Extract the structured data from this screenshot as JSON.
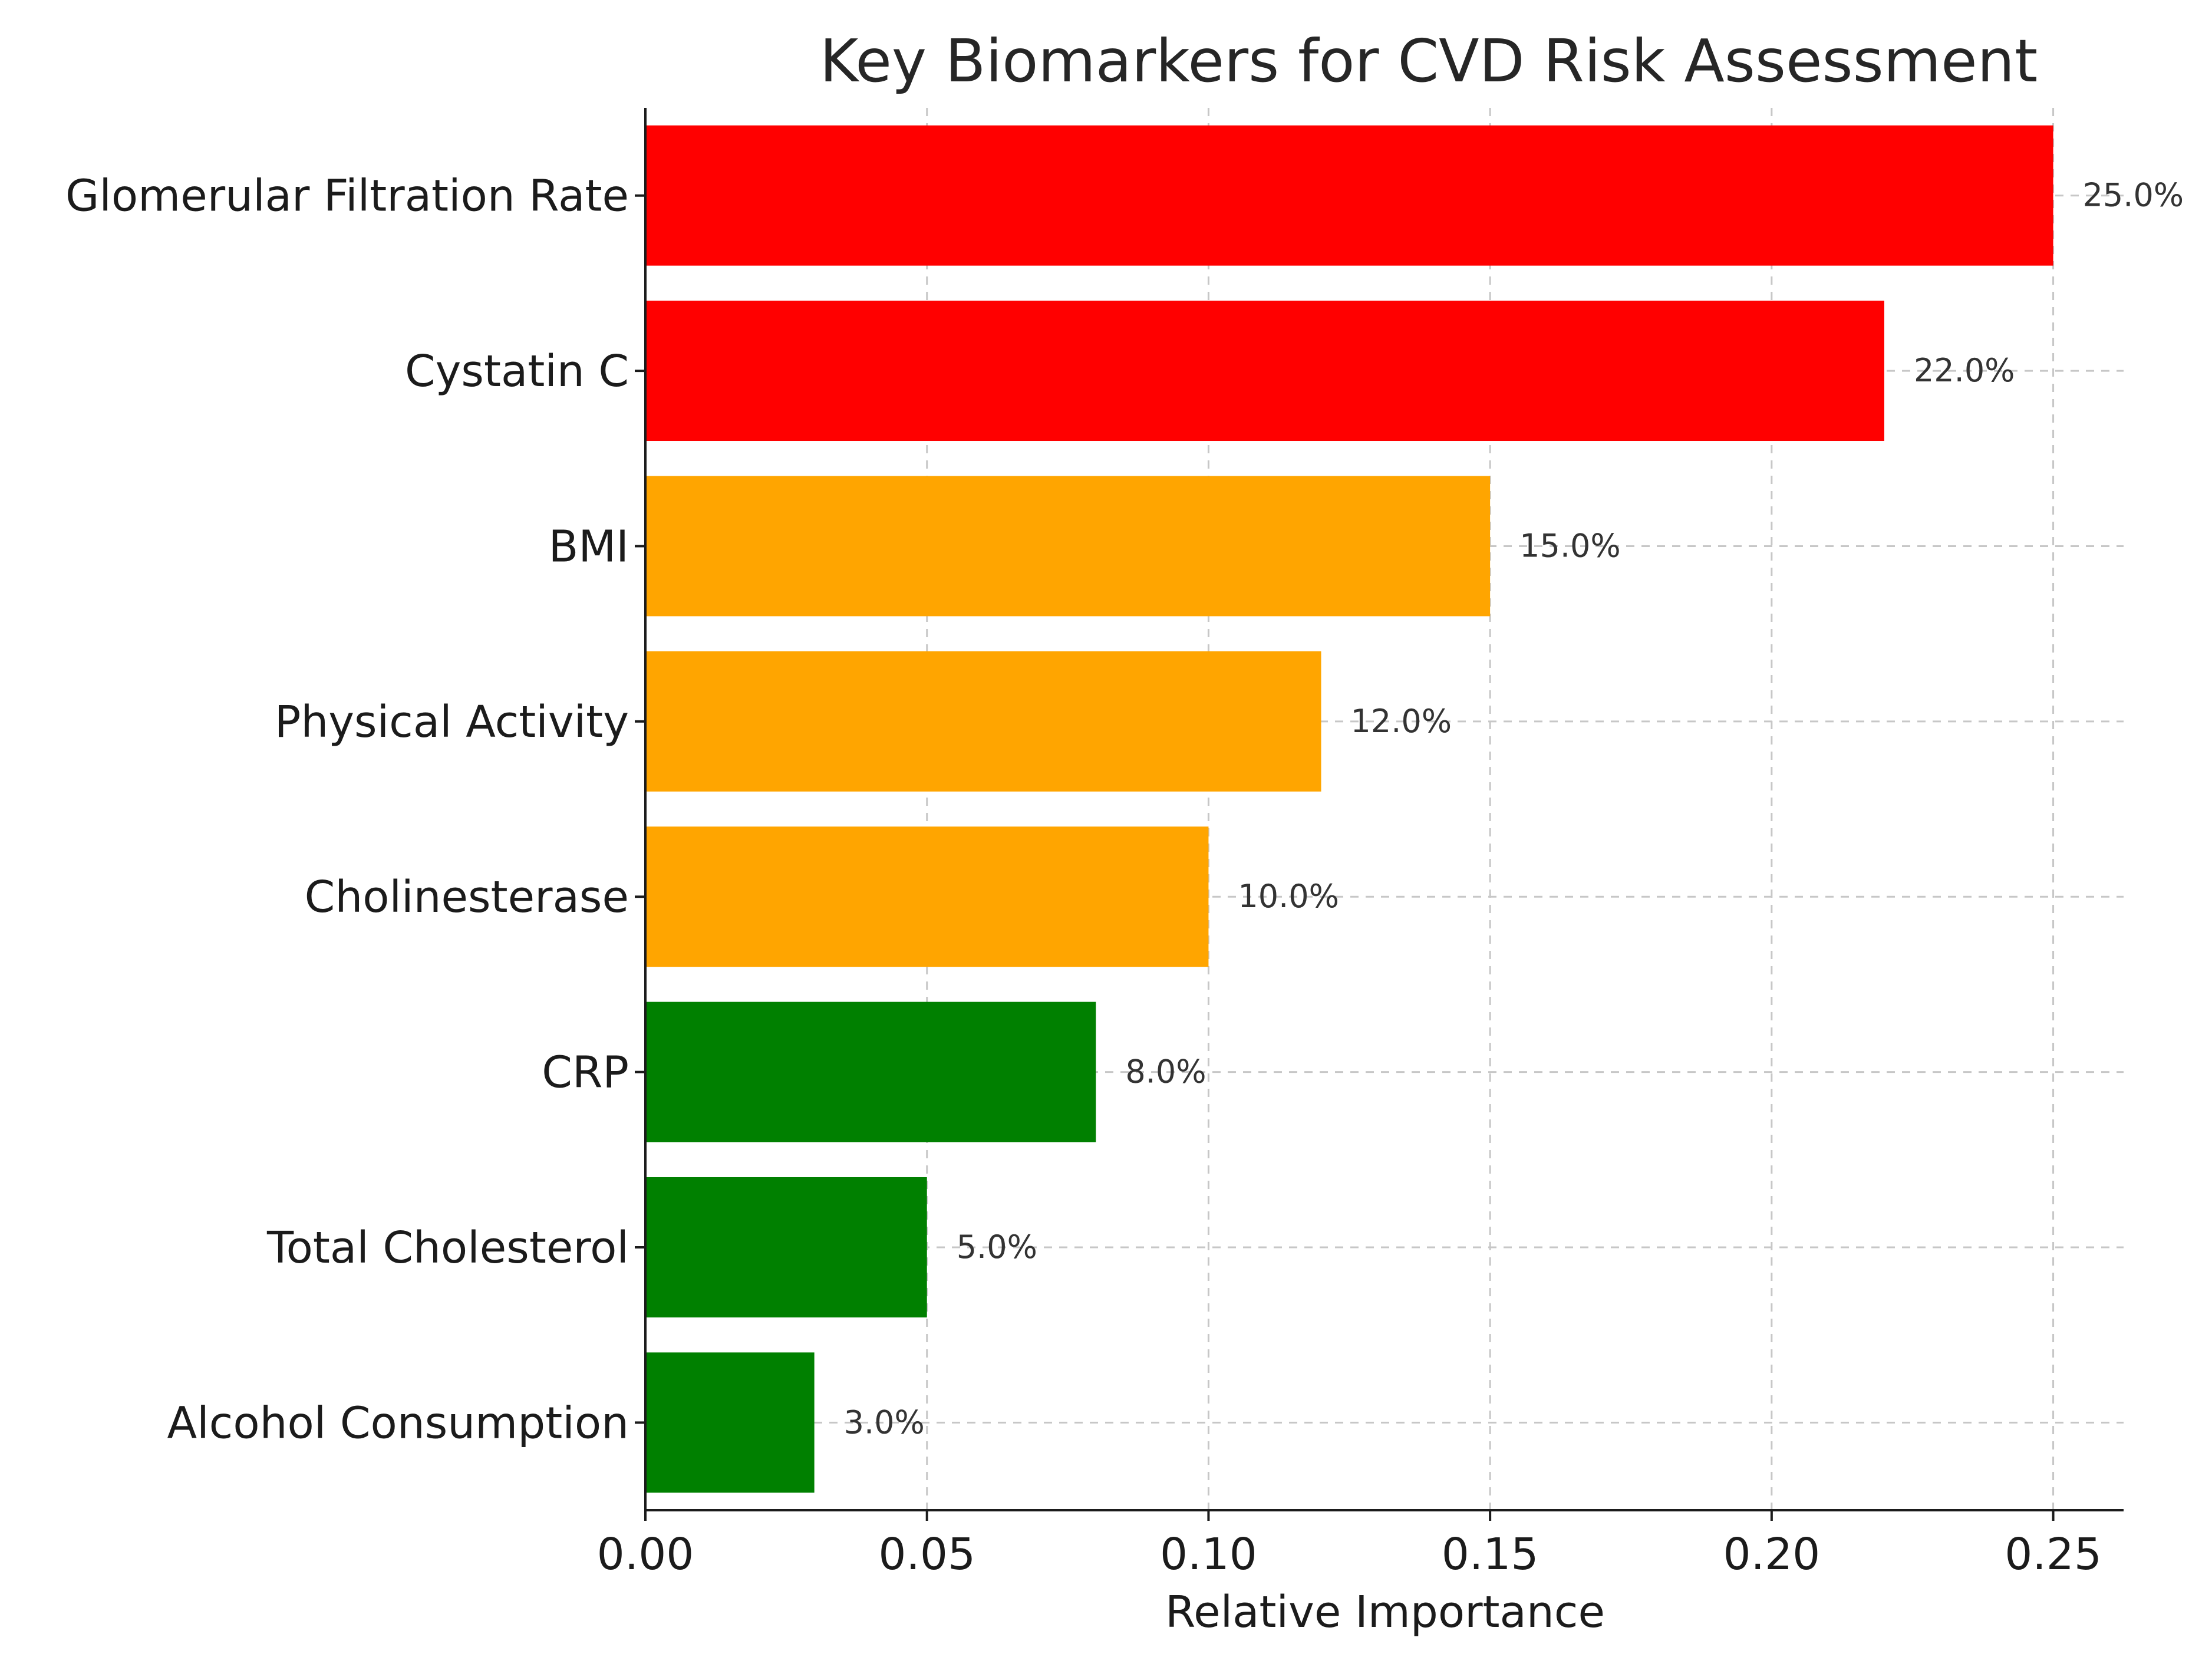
{
  "chart_data": {
    "type": "bar",
    "orientation": "horizontal",
    "title": "Key Biomarkers for CVD Risk Assessment",
    "xlabel": "Relative Importance",
    "ylabel": "",
    "xlim": [
      0.0,
      0.2625
    ],
    "xticks": [
      0.0,
      0.05,
      0.1,
      0.15,
      0.2,
      0.25
    ],
    "xtick_labels": [
      "0.00",
      "0.05",
      "0.10",
      "0.15",
      "0.20",
      "0.25"
    ],
    "grid": true,
    "categories": [
      "Glomerular Filtration Rate",
      "Cystatin C",
      "BMI",
      "Physical Activity",
      "Cholinesterase",
      "CRP",
      "Total Cholesterol",
      "Alcohol Consumption"
    ],
    "values": [
      0.25,
      0.22,
      0.15,
      0.12,
      0.1,
      0.08,
      0.05,
      0.03
    ],
    "value_labels": [
      "25.0%",
      "22.0%",
      "15.0%",
      "12.0%",
      "10.0%",
      "8.0%",
      "5.0%",
      "3.0%"
    ],
    "bar_colors": [
      "#ff0000",
      "#ff0000",
      "#ffa500",
      "#ffa500",
      "#ffa500",
      "#008000",
      "#008000",
      "#008000"
    ]
  }
}
